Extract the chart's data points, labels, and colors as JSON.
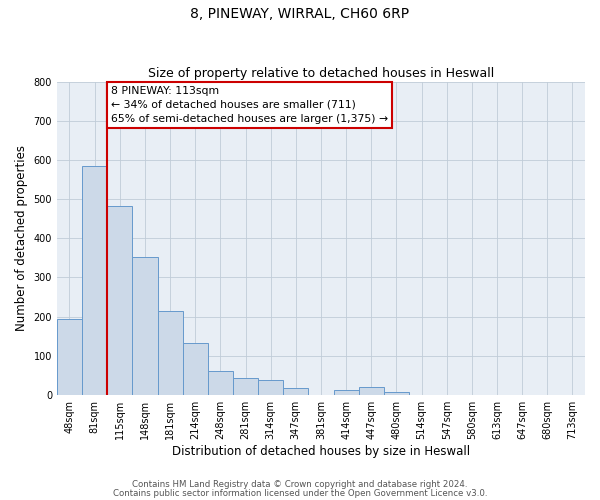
{
  "title": "8, PINEWAY, WIRRAL, CH60 6RP",
  "subtitle": "Size of property relative to detached houses in Heswall",
  "xlabel": "Distribution of detached houses by size in Heswall",
  "ylabel": "Number of detached properties",
  "bin_labels": [
    "48sqm",
    "81sqm",
    "115sqm",
    "148sqm",
    "181sqm",
    "214sqm",
    "248sqm",
    "281sqm",
    "314sqm",
    "347sqm",
    "381sqm",
    "414sqm",
    "447sqm",
    "480sqm",
    "514sqm",
    "547sqm",
    "580sqm",
    "613sqm",
    "647sqm",
    "680sqm",
    "713sqm"
  ],
  "bar_values": [
    193,
    585,
    482,
    352,
    215,
    132,
    60,
    43,
    37,
    18,
    0,
    12,
    20,
    8,
    0,
    0,
    0,
    0,
    0,
    0,
    0
  ],
  "bar_color": "#ccd9e8",
  "bar_edge_color": "#6699cc",
  "ylim": [
    0,
    800
  ],
  "yticks": [
    0,
    100,
    200,
    300,
    400,
    500,
    600,
    700,
    800
  ],
  "vline_index": 2,
  "vline_color": "#cc0000",
  "annotation_title": "8 PINEWAY: 113sqm",
  "annotation_line1": "← 34% of detached houses are smaller (711)",
  "annotation_line2": "65% of semi-detached houses are larger (1,375) →",
  "annotation_box_color": "#ffffff",
  "annotation_box_edge": "#cc0000",
  "footer1": "Contains HM Land Registry data © Crown copyright and database right 2024.",
  "footer2": "Contains public sector information licensed under the Open Government Licence v3.0.",
  "background_color": "#ffffff",
  "plot_bg_color": "#e8eef5",
  "grid_color": "#c0ccd8"
}
